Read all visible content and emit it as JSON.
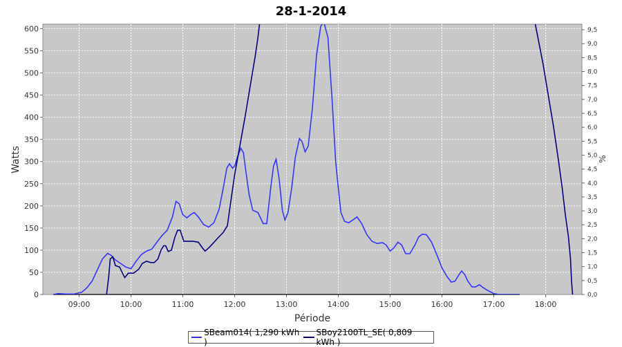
{
  "chart_data": {
    "type": "line",
    "title": "28-1-2014",
    "xlabel": "Période",
    "ylabel": "Watts",
    "ylabel_right": "%",
    "xlim": [
      8.3,
      18.7
    ],
    "ylim": [
      0,
      610
    ],
    "ylim_right": [
      0,
      9.7
    ],
    "x_ticks": [
      "09:00",
      "10:00",
      "11:00",
      "12:00",
      "13:00",
      "14:00",
      "15:00",
      "16:00",
      "17:00",
      "18:00"
    ],
    "x_tick_values": [
      9,
      10,
      11,
      12,
      13,
      14,
      15,
      16,
      17,
      18
    ],
    "y_ticks": [
      0,
      50,
      100,
      150,
      200,
      250,
      300,
      350,
      400,
      450,
      500,
      550,
      600
    ],
    "y_ticks_right": [
      "0,0",
      "0,5",
      "1,0",
      "1,5",
      "2,0",
      "2,5",
      "3,0",
      "3,5",
      "4,0",
      "4,5",
      "5,0",
      "5,5",
      "6,0",
      "6,5",
      "7,0",
      "7,5",
      "8,0",
      "8,5",
      "9,0",
      "9,5"
    ],
    "grid": true,
    "background": "#c8c8c8",
    "legend_position": "bottom",
    "series": [
      {
        "name": "SBeam014( 1,290 kWh )",
        "color": "#3333ff",
        "points": [
          [
            8.5,
            0
          ],
          [
            8.6,
            2
          ],
          [
            8.75,
            1
          ],
          [
            8.9,
            1
          ],
          [
            9.05,
            5
          ],
          [
            9.15,
            15
          ],
          [
            9.25,
            30
          ],
          [
            9.35,
            55
          ],
          [
            9.45,
            80
          ],
          [
            9.55,
            93
          ],
          [
            9.62,
            88
          ],
          [
            9.7,
            78
          ],
          [
            9.8,
            70
          ],
          [
            9.9,
            62
          ],
          [
            10.0,
            58
          ],
          [
            10.1,
            75
          ],
          [
            10.2,
            90
          ],
          [
            10.3,
            98
          ],
          [
            10.4,
            102
          ],
          [
            10.5,
            118
          ],
          [
            10.6,
            133
          ],
          [
            10.7,
            145
          ],
          [
            10.8,
            175
          ],
          [
            10.87,
            210
          ],
          [
            10.93,
            205
          ],
          [
            11.0,
            180
          ],
          [
            11.08,
            173
          ],
          [
            11.15,
            180
          ],
          [
            11.22,
            185
          ],
          [
            11.3,
            175
          ],
          [
            11.4,
            158
          ],
          [
            11.5,
            152
          ],
          [
            11.6,
            162
          ],
          [
            11.7,
            192
          ],
          [
            11.78,
            240
          ],
          [
            11.85,
            285
          ],
          [
            11.9,
            295
          ],
          [
            11.96,
            285
          ],
          [
            12.0,
            290
          ],
          [
            12.06,
            312
          ],
          [
            12.12,
            330
          ],
          [
            12.17,
            320
          ],
          [
            12.22,
            275
          ],
          [
            12.28,
            225
          ],
          [
            12.35,
            190
          ],
          [
            12.45,
            185
          ],
          [
            12.55,
            160
          ],
          [
            12.62,
            160
          ],
          [
            12.7,
            245
          ],
          [
            12.75,
            290
          ],
          [
            12.8,
            305
          ],
          [
            12.86,
            260
          ],
          [
            12.92,
            190
          ],
          [
            12.97,
            168
          ],
          [
            13.03,
            185
          ],
          [
            13.1,
            240
          ],
          [
            13.17,
            310
          ],
          [
            13.25,
            352
          ],
          [
            13.3,
            345
          ],
          [
            13.36,
            322
          ],
          [
            13.42,
            335
          ],
          [
            13.5,
            420
          ],
          [
            13.58,
            540
          ],
          [
            13.66,
            605
          ],
          [
            13.72,
            615
          ],
          [
            13.8,
            580
          ],
          [
            13.88,
            440
          ],
          [
            13.95,
            300
          ],
          [
            14.0,
            240
          ],
          [
            14.05,
            185
          ],
          [
            14.12,
            165
          ],
          [
            14.2,
            162
          ],
          [
            14.28,
            168
          ],
          [
            14.36,
            175
          ],
          [
            14.45,
            160
          ],
          [
            14.55,
            135
          ],
          [
            14.65,
            120
          ],
          [
            14.75,
            115
          ],
          [
            14.85,
            117
          ],
          [
            14.92,
            112
          ],
          [
            15.0,
            98
          ],
          [
            15.07,
            105
          ],
          [
            15.15,
            118
          ],
          [
            15.22,
            112
          ],
          [
            15.3,
            92
          ],
          [
            15.38,
            92
          ],
          [
            15.48,
            112
          ],
          [
            15.55,
            130
          ],
          [
            15.62,
            136
          ],
          [
            15.7,
            135
          ],
          [
            15.8,
            118
          ],
          [
            15.9,
            90
          ],
          [
            16.0,
            60
          ],
          [
            16.1,
            40
          ],
          [
            16.18,
            28
          ],
          [
            16.25,
            30
          ],
          [
            16.33,
            45
          ],
          [
            16.38,
            53
          ],
          [
            16.44,
            45
          ],
          [
            16.5,
            30
          ],
          [
            16.58,
            17
          ],
          [
            16.65,
            17
          ],
          [
            16.72,
            22
          ],
          [
            16.8,
            15
          ],
          [
            16.9,
            8
          ],
          [
            17.0,
            2
          ],
          [
            17.1,
            0
          ],
          [
            17.3,
            0
          ],
          [
            17.5,
            0
          ]
        ]
      },
      {
        "name": "SBoy2100TL_SE( 0,809 kWh )",
        "color": "#000080",
        "points": [
          [
            9.53,
            0
          ],
          [
            9.57,
            40
          ],
          [
            9.6,
            80
          ],
          [
            9.65,
            85
          ],
          [
            9.7,
            65
          ],
          [
            9.78,
            62
          ],
          [
            9.85,
            45
          ],
          [
            9.88,
            38
          ],
          [
            9.95,
            48
          ],
          [
            10.05,
            48
          ],
          [
            10.15,
            57
          ],
          [
            10.22,
            70
          ],
          [
            10.3,
            75
          ],
          [
            10.38,
            72
          ],
          [
            10.45,
            72
          ],
          [
            10.52,
            80
          ],
          [
            10.58,
            100
          ],
          [
            10.63,
            110
          ],
          [
            10.67,
            110
          ],
          [
            10.72,
            97
          ],
          [
            10.78,
            100
          ],
          [
            10.85,
            130
          ],
          [
            10.9,
            145
          ],
          [
            10.95,
            145
          ],
          [
            11.02,
            120
          ],
          [
            11.08,
            120
          ],
          [
            11.2,
            120
          ],
          [
            11.3,
            118
          ],
          [
            11.38,
            105
          ],
          [
            11.43,
            98
          ],
          [
            11.5,
            105
          ],
          [
            11.58,
            115
          ],
          [
            11.68,
            128
          ],
          [
            11.78,
            140
          ],
          [
            11.86,
            155
          ],
          [
            11.92,
            205
          ],
          [
            12.0,
            270
          ],
          [
            12.1,
            335
          ],
          [
            12.2,
            400
          ],
          [
            12.3,
            470
          ],
          [
            12.4,
            540
          ],
          [
            12.45,
            580
          ],
          [
            12.48,
            610
          ]
        ],
        "points_segment2": [
          [
            17.8,
            610
          ],
          [
            17.85,
            580
          ],
          [
            17.95,
            520
          ],
          [
            18.05,
            450
          ],
          [
            18.15,
            380
          ],
          [
            18.25,
            300
          ],
          [
            18.32,
            240
          ],
          [
            18.38,
            180
          ],
          [
            18.44,
            130
          ],
          [
            18.48,
            80
          ],
          [
            18.5,
            30
          ],
          [
            18.52,
            0
          ]
        ]
      }
    ]
  }
}
